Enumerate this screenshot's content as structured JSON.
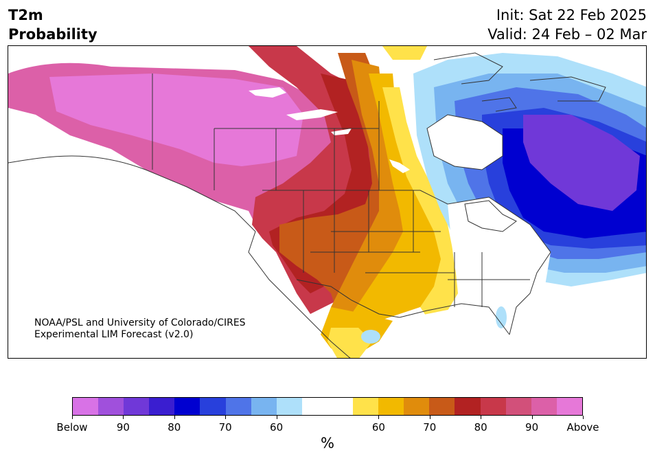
{
  "header": {
    "title_line1": "T2m",
    "title_line2": "Probability",
    "init": "Init: Sat 22 Feb 2025",
    "valid": "Valid: 24 Feb – 02 Mar"
  },
  "credit": {
    "line1": "NOAA/PSL and University of Colorado/CIRES",
    "line2": "Experimental LIM Forecast (v2.0)"
  },
  "colorbar": {
    "colors": [
      "#d872e6",
      "#a050dc",
      "#7038d8",
      "#3a1ed0",
      "#0000d0",
      "#2840dc",
      "#4f74e8",
      "#78b4f0",
      "#aee0fa",
      "#ffffff",
      "#ffffff",
      "#ffe24a",
      "#f2b900",
      "#e08c0c",
      "#c85a18",
      "#b22222",
      "#c8384a",
      "#d2507a",
      "#dc60a8",
      "#e678d8"
    ],
    "tick_labels": [
      "Below",
      "90",
      "80",
      "70",
      "60",
      "60",
      "70",
      "80",
      "90",
      "Above"
    ],
    "unit": "%"
  },
  "legend_colors": {
    "above_high": "#e678d8",
    "warm": "#c8384a",
    "below_high": "#0000d0",
    "near_normal": "#ffffff"
  }
}
